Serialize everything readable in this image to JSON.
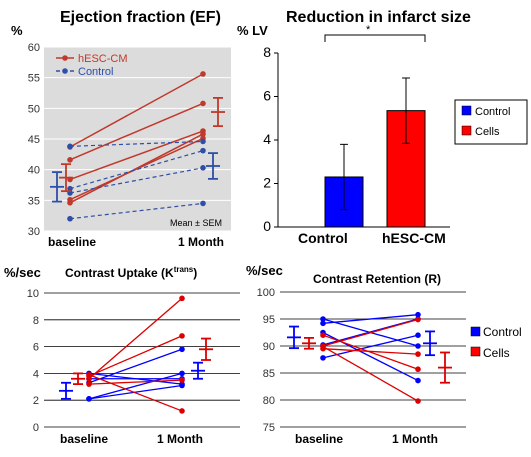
{
  "colors": {
    "red": "#c0392b",
    "blue": "#2e4fa8",
    "bar_blue": "#0000ff",
    "bar_red": "#ff0000",
    "grid": "#bfbfbf"
  },
  "chart_data": [
    {
      "type": "line",
      "title": "Ejection fraction (EF)",
      "ylabel": "%",
      "ylim": [
        30,
        60
      ],
      "yticks": [
        30,
        35,
        40,
        45,
        50,
        55,
        60
      ],
      "categories": [
        "baseline",
        "1 Month"
      ],
      "legend": [
        "hESC-CM",
        "Control"
      ],
      "note": "Mean ± SEM",
      "series": [
        {
          "name": "hESC-CM",
          "style": "solid",
          "lines": [
            [
              43.7,
              55.6
            ],
            [
              41.6,
              50.8
            ],
            [
              38.4,
              46.3
            ],
            [
              34.6,
              45.8
            ],
            [
              35.1,
              45.1
            ]
          ],
          "mean": [
            38.7,
            49.4
          ],
          "sem": [
            2.2,
            2.3
          ]
        },
        {
          "name": "Control",
          "style": "dashed",
          "lines": [
            [
              43.8,
              44.6
            ],
            [
              36.9,
              43.1
            ],
            [
              36.2,
              40.3
            ],
            [
              32.0,
              34.5
            ]
          ],
          "mean": [
            37.2,
            40.6
          ],
          "sem": [
            2.4,
            2.1
          ]
        }
      ]
    },
    {
      "type": "bar",
      "title": "Reduction in infarct size",
      "ylabel": "% LV",
      "ylim": [
        0,
        8
      ],
      "yticks": [
        0,
        2,
        4,
        6,
        8
      ],
      "categories": [
        "Control",
        "hESC-CM"
      ],
      "values": [
        2.3,
        5.35
      ],
      "errors": [
        1.5,
        1.5
      ],
      "legend": [
        "Control",
        "Cells"
      ],
      "significance": "*"
    },
    {
      "type": "line",
      "title": "Contrast Uptake (K",
      "title_sup": "trans",
      "title_end": ")",
      "ylabel": "%/sec",
      "ylim": [
        0,
        10
      ],
      "yticks": [
        0,
        2,
        4,
        6,
        8,
        10
      ],
      "categories": [
        "baseline",
        "1 Month"
      ],
      "series": [
        {
          "name": "Control",
          "lines": [
            [
              4.0,
              3.2
            ],
            [
              3.6,
              3.6
            ],
            [
              3.3,
              5.8
            ],
            [
              2.1,
              4.0
            ],
            [
              2.1,
              3.1
            ]
          ],
          "mean": [
            2.7,
            4.2
          ],
          "sem": [
            0.6,
            0.6
          ]
        },
        {
          "name": "Cells",
          "lines": [
            [
              3.6,
              9.6
            ],
            [
              3.8,
              6.8
            ],
            [
              3.2,
              3.5
            ],
            [
              3.9,
              1.2
            ]
          ],
          "mean": [
            3.6,
            5.8
          ],
          "sem": [
            0.4,
            0.8
          ]
        }
      ]
    },
    {
      "type": "line",
      "title": "Contrast Retention (R)",
      "ylabel": "%/sec",
      "ylim": [
        75,
        100
      ],
      "yticks": [
        75,
        80,
        85,
        90,
        95,
        100
      ],
      "categories": [
        "baseline",
        "1 Month"
      ],
      "legend": [
        "Control",
        "Cells"
      ],
      "series": [
        {
          "name": "Control",
          "lines": [
            [
              95.0,
              90.0
            ],
            [
              94.2,
              95.8
            ],
            [
              92.5,
              83.6
            ],
            [
              87.8,
              92.0
            ],
            [
              90.2,
              95.0
            ]
          ],
          "mean": [
            91.6,
            90.5
          ],
          "sem": [
            2.0,
            2.2
          ]
        },
        {
          "name": "Cells",
          "lines": [
            [
              92.0,
              85.7
            ],
            [
              90.0,
              94.9
            ],
            [
              89.9,
              79.8
            ],
            [
              89.5,
              88.5
            ]
          ],
          "mean": [
            90.5,
            86.0
          ],
          "sem": [
            1.0,
            2.8
          ]
        }
      ]
    }
  ]
}
